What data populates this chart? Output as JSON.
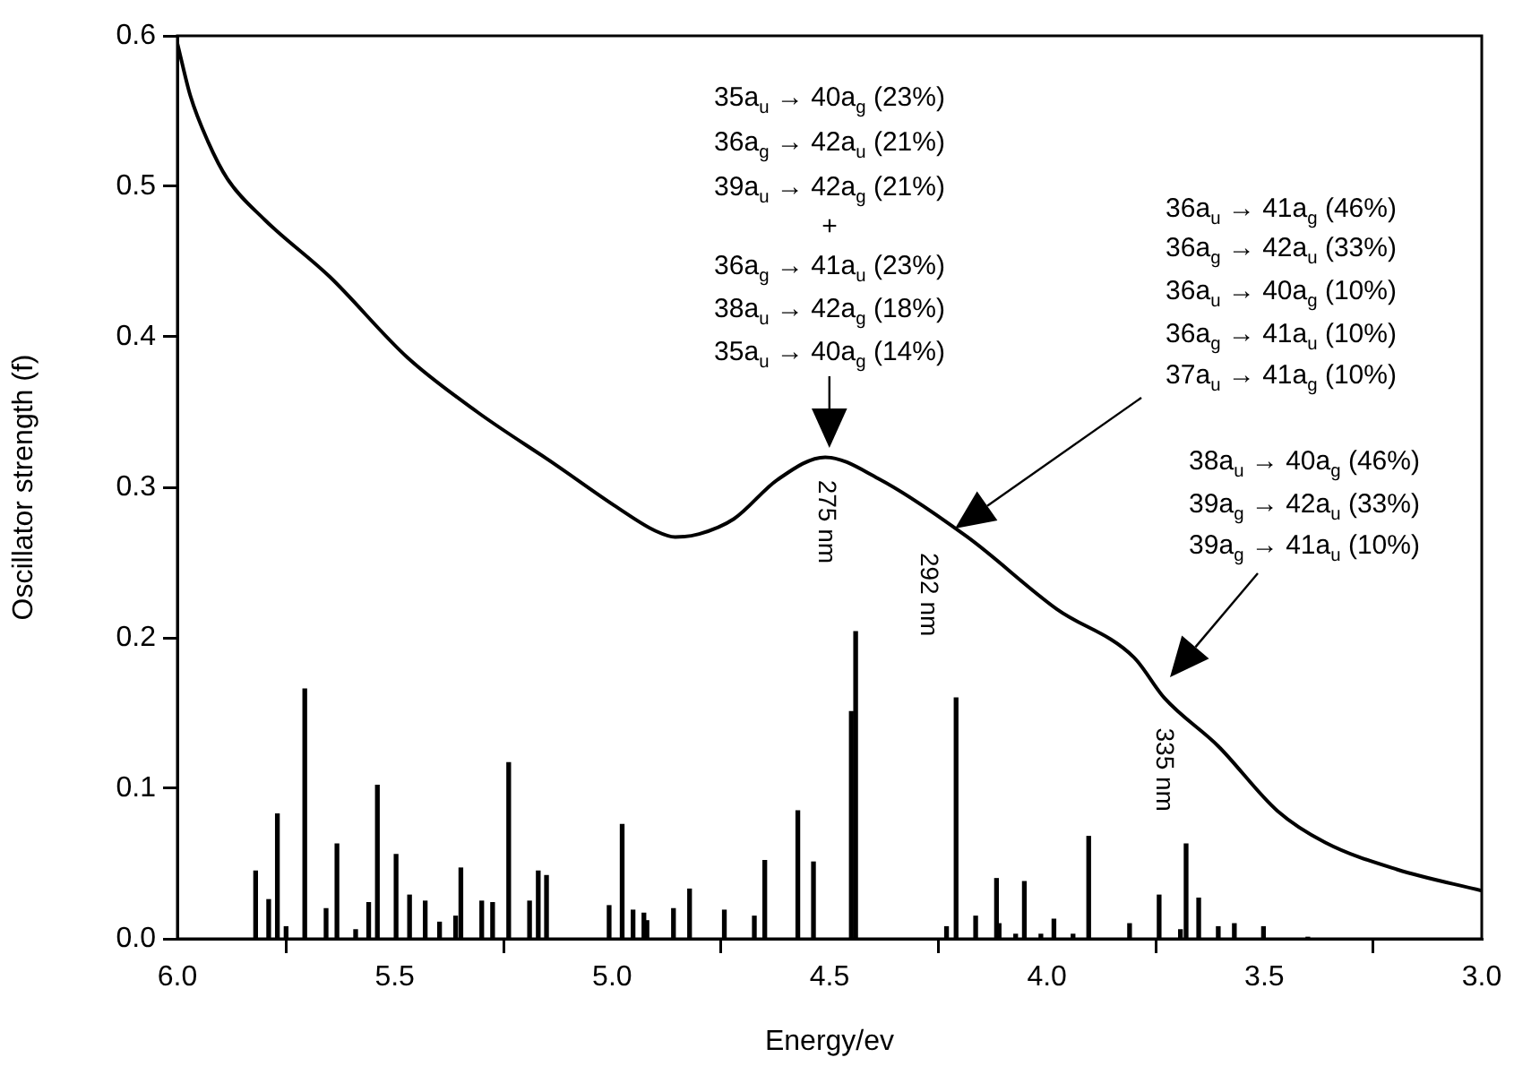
{
  "chart_data": {
    "type": "line",
    "xlabel": "Energy/ev",
    "ylabel": "Oscillator strength (f)",
    "xlim": [
      6.0,
      3.0
    ],
    "xticks": [
      {
        "value": 6,
        "label": "6.0"
      },
      {
        "value": 5.5,
        "label": "5.5"
      },
      {
        "value": 5,
        "label": "5.0"
      },
      {
        "value": 4.5,
        "label": "4.5"
      },
      {
        "value": 4,
        "label": "4.0"
      },
      {
        "value": 3.5,
        "label": "3.5"
      },
      {
        "value": 3,
        "label": "3.0"
      }
    ],
    "ylim": [
      0,
      0.6
    ],
    "yticks": [
      {
        "value": 0,
        "label": "0.0"
      },
      {
        "value": 0.1,
        "label": "0.1"
      },
      {
        "value": 0.2,
        "label": "0.2"
      },
      {
        "value": 0.3,
        "label": "0.3"
      },
      {
        "value": 0.4,
        "label": "0.4"
      },
      {
        "value": 0.5,
        "label": "0.5"
      },
      {
        "value": 0.6,
        "label": "0.6"
      }
    ],
    "grid": false,
    "legend": false,
    "marker": "none",
    "line_style": "solid",
    "series": [
      {
        "color": "#000000",
        "x": [
          6.0,
          5.97,
          5.93,
          5.885,
          5.8,
          5.65,
          5.47,
          5.31,
          5.13,
          4.99,
          4.9,
          4.855,
          4.8,
          4.72,
          4.62,
          4.51,
          4.389,
          4.183,
          3.977,
          3.8,
          3.73,
          3.606,
          3.47,
          3.36,
          3.194,
          3.0
        ],
        "values": [
          0.595,
          0.56,
          0.53,
          0.505,
          0.478,
          0.44,
          0.386,
          0.35,
          0.315,
          0.287,
          0.271,
          0.267,
          0.269,
          0.279,
          0.305,
          0.32,
          0.306,
          0.267,
          0.219,
          0.187,
          0.16,
          0.128,
          0.085,
          0.064,
          0.046,
          0.032
        ]
      },
      {
        "type": "bar",
        "color": "#000000",
        "x": [
          5.82,
          5.79,
          5.77,
          5.75,
          5.707,
          5.658,
          5.633,
          5.59,
          5.56,
          5.54,
          5.497,
          5.466,
          5.43,
          5.397,
          5.36,
          5.348,
          5.3,
          5.275,
          5.238,
          5.19,
          5.17,
          5.151,
          5.007,
          4.977,
          4.952,
          4.927,
          4.92,
          4.859,
          4.822,
          4.742,
          4.673,
          4.649,
          4.573,
          4.537,
          4.45,
          4.44,
          4.231,
          4.209,
          4.164,
          4.116,
          4.11,
          4.072,
          4.052,
          4.014,
          3.984,
          3.94,
          3.904,
          3.81,
          3.742,
          3.693,
          3.68,
          3.651,
          3.606,
          3.569,
          3.502,
          3.4
        ],
        "values": [
          0.045,
          0.026,
          0.083,
          0.008,
          0.166,
          0.02,
          0.063,
          0.006,
          0.024,
          0.102,
          0.056,
          0.029,
          0.025,
          0.011,
          0.015,
          0.047,
          0.025,
          0.024,
          0.117,
          0.025,
          0.045,
          0.042,
          0.022,
          0.076,
          0.019,
          0.017,
          0.012,
          0.02,
          0.033,
          0.019,
          0.015,
          0.052,
          0.085,
          0.051,
          0.151,
          0.204,
          0.008,
          0.16,
          0.015,
          0.04,
          0.01,
          0.003,
          0.038,
          0.003,
          0.013,
          0.003,
          0.068,
          0.01,
          0.029,
          0.006,
          0.063,
          0.027,
          0.008,
          0.01,
          0.008,
          0.001
        ]
      }
    ],
    "annotations": [
      "35a$_{u}$ → 40a$_{g}$ (23%)",
      "36a$_{g}$ → 42a$_{u}$ (21%)",
      "39a$_{u}$ → 42a$_{g}$ (21%)",
      "+",
      "36a$_{g}$ → 41a$_{u}$ (23%)",
      "38a$_{u}$ → 42a$_{g}$ (18%)",
      "35a$_{u}$ → 40a$_{g}$ (14%)",
      "36a$_{u}$ → 41a$_{g}$ (46%)",
      "36a$_{g}$ → 42a$_{u}$ (33%)",
      "36a$_{u}$ → 40a$_{g}$ (10%)",
      "36a$_{g}$ → 41a$_{u}$ (10%)",
      "37a$_{u}$ → 41a$_{g}$ (10%)",
      "38a$_{u}$ → 40a$_{g}$ (46%)",
      "39a$_{g}$ → 42a$_{u}$ (33%)",
      "39a$_{g}$ → 41a$_{u}$ (10%)",
      {
        "text": "275 nm",
        "x": 4.5,
        "y": 0.32
      },
      {
        "text": "292 nm",
        "x": 4.25,
        "y": 0.28
      },
      {
        "text": "335 nm",
        "x": 3.7,
        "y": 0.16
      }
    ]
  }
}
